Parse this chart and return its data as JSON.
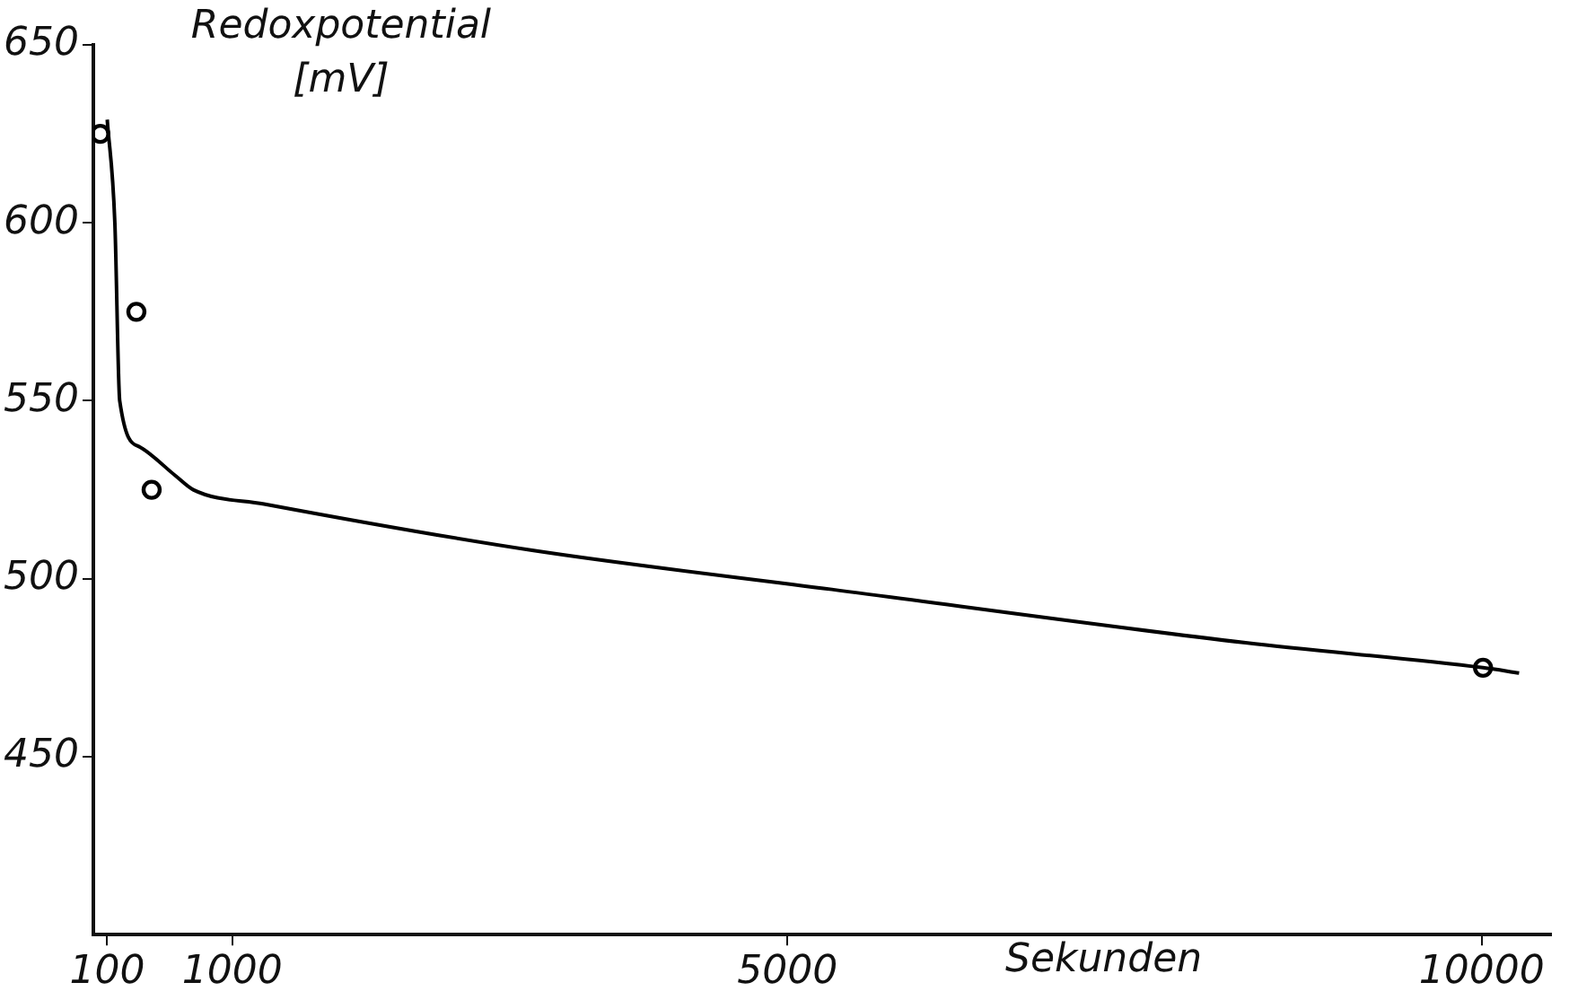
{
  "chart_data": {
    "type": "line",
    "ylabel": "Redoxpotential [mV]",
    "xlabel": "Sekunden",
    "xlim": [
      0,
      10500
    ],
    "xticks": [
      100,
      1000,
      5000,
      10000
    ],
    "ylim": [
      400,
      650
    ],
    "yticks": [
      450,
      500,
      550,
      600,
      650
    ],
    "grid": false,
    "legend": false,
    "series": [
      {
        "color": "#000000",
        "marker": "none",
        "x": [
          100,
          155,
          190,
          335,
          590,
          720,
          1230,
          3160,
          5320,
          8300,
          10010,
          10270
        ],
        "values": [
          629,
          600,
          550,
          537,
          529,
          525,
          521,
          508,
          497,
          482,
          475,
          473.5
        ]
      },
      {
        "type": "scatter",
        "color": "#000000",
        "marker": "circle",
        "x": [
          50,
          310,
          420,
          10010
        ],
        "values": [
          625,
          575,
          525,
          475
        ]
      }
    ]
  }
}
